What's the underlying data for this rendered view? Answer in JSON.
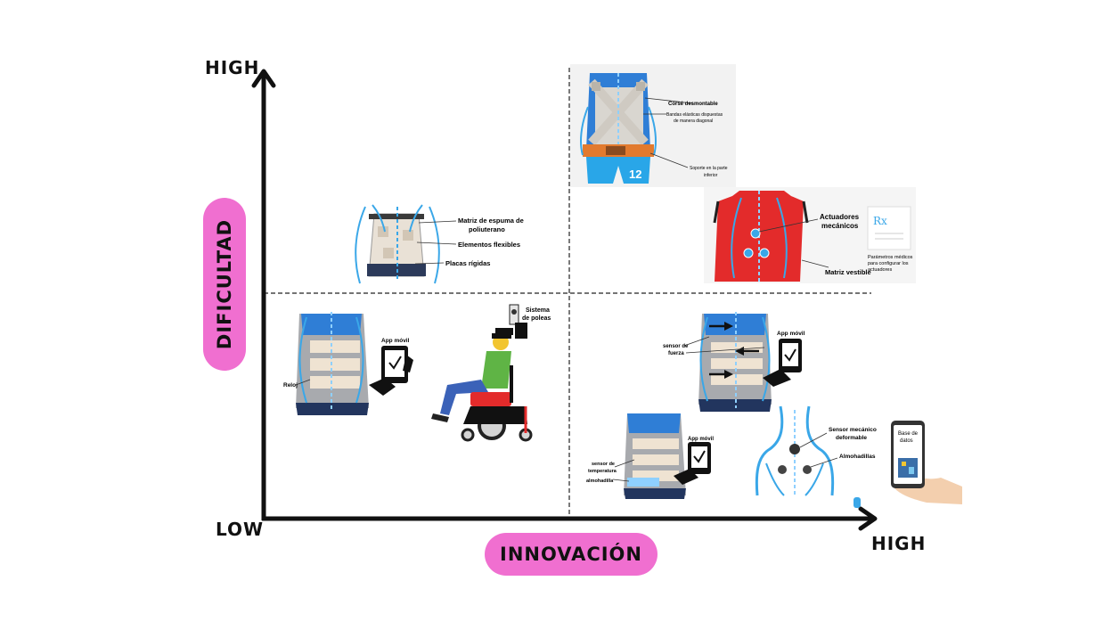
{
  "axes": {
    "x_title": "INNOVACIÓN",
    "y_title": "DIFICULTAD",
    "y_high": "HIGH",
    "origin_low": "LOW",
    "x_high": "HIGH"
  },
  "quadrant_tl": {
    "labels": [
      "Matriz de espuma de",
      "poliuterano",
      "Elementos flexibles",
      "Placas rígidas"
    ]
  },
  "quadrant_tr_top": {
    "labels": [
      "Corsé desmontable",
      "Bandas elásticas dispuestas",
      "de manera diagonal",
      "Soporte en la parte",
      "inferior"
    ],
    "number": "12"
  },
  "quadrant_tr_red": {
    "labels": [
      "Actuadores",
      "mecánicos",
      "Matriz vestible",
      "Parámetros médicos",
      "para configurar los",
      "actuadores"
    ],
    "rx": "Rx"
  },
  "quadrant_bl": {
    "app_label": "App móvil",
    "reloj_label": "Reloj",
    "pulley_labels": [
      "Sistema",
      "de poleas"
    ]
  },
  "quadrant_br_force": {
    "app_label": "App móvil",
    "sensor_labels": [
      "sensor de",
      "fuerza"
    ]
  },
  "quadrant_br_temp": {
    "app_label": "App móvil",
    "sensor_labels": [
      "sensor de",
      "temperatura"
    ],
    "pad_label": "almohadilla"
  },
  "quadrant_br_back": {
    "sensor_labels": [
      "Sensor mecánico",
      "deformable"
    ],
    "pads_label": "Almohadillas",
    "db_labels": [
      "Base de",
      "datos"
    ]
  },
  "colors": {
    "pill": "#f06fd0",
    "axis": "#111111",
    "blue": "#3aa7e8",
    "red": "#e32b2b",
    "skin": "#f0e2d0"
  }
}
